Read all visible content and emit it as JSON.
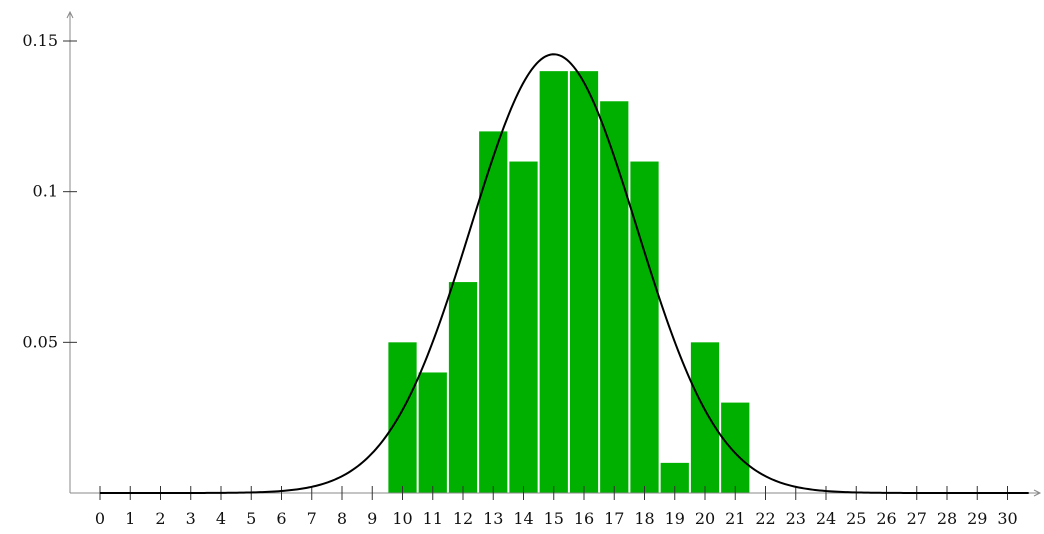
{
  "chart_data": {
    "type": "bar",
    "title": "",
    "xlabel": "",
    "ylabel": "",
    "x_ticks": [
      0,
      1,
      2,
      3,
      4,
      5,
      6,
      7,
      8,
      9,
      10,
      11,
      12,
      13,
      14,
      15,
      16,
      17,
      18,
      19,
      20,
      21,
      22,
      23,
      24,
      25,
      26,
      27,
      28,
      29,
      30
    ],
    "y_ticks": [
      0.05,
      0.1,
      0.15
    ],
    "y_tick_labels": [
      "0.05",
      "0.1",
      "0.15"
    ],
    "xlim": [
      -0.5,
      30.7
    ],
    "ylim": [
      0,
      0.15
    ],
    "grid": false,
    "legend": "none",
    "series": [
      {
        "type": "bar",
        "x": [
          10,
          11,
          12,
          13,
          14,
          15,
          16,
          17,
          18,
          19,
          20,
          21
        ],
        "values": [
          0.05,
          0.04,
          0.07,
          0.12,
          0.11,
          0.14,
          0.14,
          0.13,
          0.11,
          0.01,
          0.05,
          0.03
        ],
        "color": "#00b000"
      },
      {
        "type": "line",
        "distribution": "normal",
        "mean": 15,
        "std": 2.74,
        "peak": 0.1456,
        "x_range": [
          0,
          30.7
        ],
        "color": "#000000"
      }
    ]
  }
}
